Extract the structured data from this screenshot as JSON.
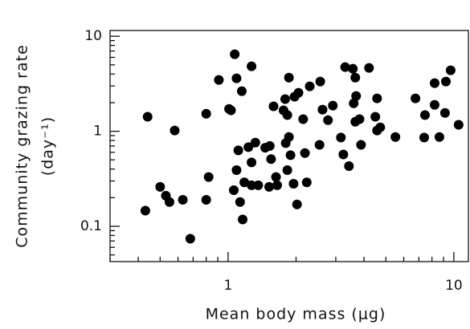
{
  "chart_data": {
    "type": "scatter",
    "log_x": true,
    "log_y": true,
    "color": "#000000",
    "xlabel": "Mean body mass (μg)",
    "ylabel": "Community grazing rate",
    "ylabel_unit": "(day⁻¹)",
    "xlim": [
      0.3,
      11.6
    ],
    "ylim": [
      0.0425,
      11.5
    ],
    "xticks": [
      1,
      10
    ],
    "yticks": [
      0.1,
      1,
      10
    ],
    "xticks_minor": [
      0.3,
      0.4,
      0.5,
      0.6,
      0.7,
      0.8,
      0.9,
      2,
      3,
      4,
      5,
      6,
      7,
      8,
      9
    ],
    "yticks_minor": [
      0.05,
      0.06,
      0.07,
      0.08,
      0.09,
      0.2,
      0.3,
      0.4,
      0.5,
      0.6,
      0.7,
      0.8,
      0.9,
      2,
      3,
      4,
      5,
      6,
      7,
      8,
      9
    ],
    "x": [
      0.43,
      0.44,
      0.5,
      0.53,
      0.55,
      0.58,
      0.63,
      0.68,
      0.8,
      0.8,
      0.82,
      0.91,
      1.01,
      1.03,
      1.07,
      1.09,
      1.06,
      1.09,
      1.11,
      1.15,
      1.16,
      1.18,
      1.13,
      1.23,
      1.27,
      1.27,
      1.27,
      1.32,
      1.36,
      1.46,
      1.52,
      1.59,
      1.53,
      1.55,
      1.63,
      1.65,
      1.76,
      1.83,
      1.83,
      1.79,
      1.8,
      1.86,
      1.86,
      1.89,
      1.95,
      2.02,
      1.97,
      2.05,
      2.15,
      2.19,
      2.23,
      2.3,
      2.56,
      2.54,
      2.62,
      2.77,
      2.91,
      3.16,
      3.24,
      3.3,
      3.43,
      3.57,
      3.66,
      3.66,
      3.6,
      3.69,
      3.82,
      3.88,
      4.21,
      4.49,
      4.57,
      4.57,
      4.72,
      5.51,
      6.76,
      7.39,
      7.45,
      8.22,
      8.22,
      8.63,
      9.14,
      9.22,
      9.68,
      10.5
    ],
    "values": [
      0.146,
      1.42,
      0.26,
      0.21,
      0.18,
      1.02,
      0.19,
      0.074,
      0.19,
      1.53,
      0.33,
      3.47,
      1.72,
      1.66,
      6.46,
      3.61,
      0.24,
      0.39,
      0.63,
      2.64,
      0.118,
      0.29,
      0.18,
      0.68,
      4.83,
      0.47,
      0.27,
      0.76,
      0.27,
      0.67,
      0.26,
      1.83,
      0.7,
      0.51,
      0.33,
      0.27,
      1.66,
      0.39,
      1.48,
      2.18,
      0.75,
      3.67,
      0.87,
      0.56,
      0.28,
      0.17,
      2.31,
      2.54,
      1.34,
      0.59,
      0.29,
      2.97,
      3.34,
      0.72,
      1.69,
      1.31,
      1.86,
      0.86,
      0.57,
      4.73,
      0.43,
      4.55,
      1.26,
      3.67,
      1.97,
      2.35,
      1.34,
      0.72,
      4.64,
      1.42,
      2.22,
      1.02,
      1.1,
      0.87,
      2.22,
      0.86,
      1.48,
      1.9,
      3.21,
      0.87,
      1.56,
      3.34,
      4.38,
      1.17
    ]
  }
}
